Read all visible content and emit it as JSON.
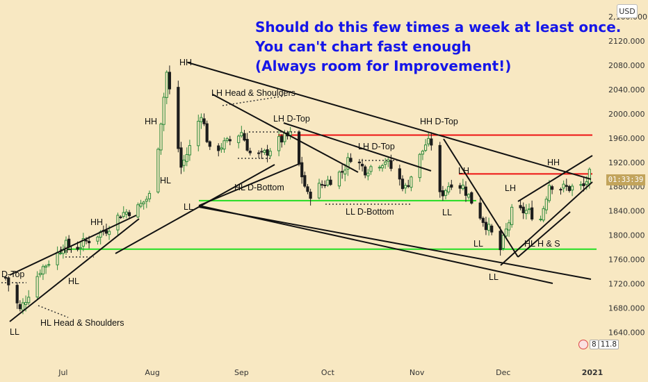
{
  "currency_button": "USD",
  "price_tag": "01:33:39",
  "indicator_badge": {
    "value_a": "8",
    "value_b": "11.8"
  },
  "colors": {
    "background": "#f8e8c2",
    "up": "#2f8a3c",
    "down": "#1d1d1d",
    "trendline": "#111111",
    "support": "#22dd22",
    "resistance": "#ee1111",
    "note": "#1616e8"
  },
  "note_lines": [
    "Should do this few times a week at least once.",
    "You can't chart fast enough",
    "(Always room for Improvement!)"
  ],
  "annotations": {
    "dtop_left": "D-Top",
    "ll_left": "LL",
    "hl_head_shoulders": "HL Head & Shoulders",
    "hh_jul_low": "HH",
    "hl_jul": "HL",
    "hh_jul_high": "HH",
    "hh_aug": "HH",
    "hl_aug": "HL",
    "hh_top": "HH",
    "ll_aug": "LL",
    "lh_head_shoulders": "LH Head & Shoulders",
    "lh_dtop_sep": "LH D-Top",
    "hl_dbottom": "HL D-Bottom",
    "lh_dtop_oct": "LH D-Top",
    "ll_dbottom": "LL D-Bottom",
    "hh_dtop_nov": "HH D-Top",
    "lh_nov": "LH",
    "ll_nov": "LL",
    "lh_dec": "LH",
    "ll_dec_a": "LL",
    "ll_dec_b": "LL",
    "hl_hs_dec": "HL H & S",
    "hh_dec": "HH"
  },
  "chart_data": {
    "type": "candlestick",
    "symbol_unit": "USD",
    "ylim": [
      1620,
      2160
    ],
    "y_ticks": [
      "2,160.000",
      "2120.000",
      "2080.000",
      "2040.000",
      "2000.000",
      "1960.000",
      "1920.000",
      "1880.000",
      "1840.000",
      "1800.000",
      "1760.000",
      "1720.000",
      "1680.000",
      "1640.000"
    ],
    "x_ticks": [
      "Jul",
      "Aug",
      "Sep",
      "Oct",
      "Nov",
      "Dec",
      "2021"
    ],
    "grid": false,
    "levels": [
      {
        "name": "support",
        "value": 1777,
        "color": "#22dd22"
      },
      {
        "name": "support",
        "value": 1857,
        "color": "#22dd22"
      },
      {
        "name": "resistance",
        "value": 1965,
        "color": "#ee1111"
      },
      {
        "name": "resistance",
        "value": 1901,
        "color": "#ee1111"
      }
    ],
    "close_path": [
      {
        "date": "2020-06-11",
        "close": 1730
      },
      {
        "date": "2020-06-16",
        "close": 1676
      },
      {
        "date": "2020-06-23",
        "close": 1743
      },
      {
        "date": "2020-06-29",
        "close": 1770
      },
      {
        "date": "2020-07-01",
        "close": 1784
      },
      {
        "date": "2020-07-06",
        "close": 1781
      },
      {
        "date": "2020-07-16",
        "close": 1810
      },
      {
        "date": "2020-07-21",
        "close": 1835
      },
      {
        "date": "2020-07-27",
        "close": 1845
      },
      {
        "date": "2020-08-01",
        "close": 1870
      },
      {
        "date": "2020-08-06",
        "close": 2068
      },
      {
        "date": "2020-08-07",
        "close": 2038
      },
      {
        "date": "2020-08-11",
        "close": 1912
      },
      {
        "date": "2020-08-14",
        "close": 1945
      },
      {
        "date": "2020-08-18",
        "close": 2002
      },
      {
        "date": "2020-08-21",
        "close": 1938
      },
      {
        "date": "2020-08-27",
        "close": 1952
      },
      {
        "date": "2020-09-01",
        "close": 1970
      },
      {
        "date": "2020-09-04",
        "close": 1935
      },
      {
        "date": "2020-09-08",
        "close": 1930
      },
      {
        "date": "2020-09-14",
        "close": 1955
      },
      {
        "date": "2020-09-18",
        "close": 1965
      },
      {
        "date": "2020-09-24",
        "close": 1865
      },
      {
        "date": "2020-09-28",
        "close": 1880
      },
      {
        "date": "2020-10-06",
        "close": 1905
      },
      {
        "date": "2020-10-09",
        "close": 1930
      },
      {
        "date": "2020-10-14",
        "close": 1908
      },
      {
        "date": "2020-10-21",
        "close": 1924
      },
      {
        "date": "2020-10-28",
        "close": 1877
      },
      {
        "date": "2020-11-04",
        "close": 1950
      },
      {
        "date": "2020-11-06",
        "close": 1952
      },
      {
        "date": "2020-11-09",
        "close": 1865
      },
      {
        "date": "2020-11-13",
        "close": 1888
      },
      {
        "date": "2020-11-17",
        "close": 1880
      },
      {
        "date": "2020-11-23",
        "close": 1833
      },
      {
        "date": "2020-11-26",
        "close": 1810
      },
      {
        "date": "2020-11-30",
        "close": 1776
      },
      {
        "date": "2020-12-04",
        "close": 1838
      },
      {
        "date": "2020-12-09",
        "close": 1840
      },
      {
        "date": "2020-12-14",
        "close": 1827
      },
      {
        "date": "2020-12-17",
        "close": 1885
      },
      {
        "date": "2020-12-21",
        "close": 1878
      },
      {
        "date": "2020-12-24",
        "close": 1878
      },
      {
        "date": "2020-12-29",
        "close": 1880
      },
      {
        "date": "2020-12-31",
        "close": 1900
      }
    ]
  }
}
